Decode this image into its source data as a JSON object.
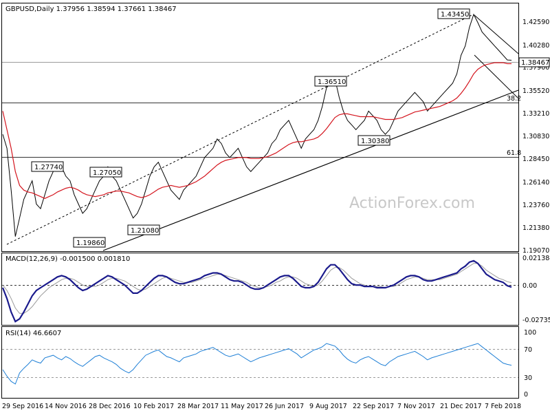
{
  "header": {
    "symbol_info": "GBPUSD,Daily  1.37956 1.38594 1.37661 1.38467"
  },
  "watermark": "ActionForex.com",
  "price_panel": {
    "y_ticks": [
      "1.42590",
      "1.40280",
      "1.37900",
      "1.35520",
      "1.33210",
      "1.30830",
      "1.28450",
      "1.26140",
      "1.23760",
      "1.21380",
      "1.19070"
    ],
    "current_price": "1.38467",
    "labels": [
      "1.43450",
      "1.36510",
      "1.30380",
      "1.27740",
      "1.27050",
      "1.21080",
      "1.19860"
    ],
    "fib_labels": [
      "38.2",
      "61.8"
    ]
  },
  "macd_panel": {
    "title": "MACD(12,26,9) -0.001500 0.001810",
    "y_ticks": [
      "0.021384",
      "0.00",
      "-0.027353"
    ]
  },
  "rsi_panel": {
    "title": "RSI(14) 46.6607",
    "y_ticks": [
      "100",
      "70",
      "30",
      "0"
    ]
  },
  "x_axis": {
    "labels": [
      "29 Sep 2016",
      "14 Nov 2016",
      "28 Dec 2016",
      "10 Feb 2017",
      "28 Mar 2017",
      "11 May 2017",
      "26 Jun 2017",
      "9 Aug 2017",
      "22 Sep 2017",
      "7 Nov 2017",
      "21 Dec 2017",
      "7 Feb 2018"
    ]
  },
  "chart_data": [
    {
      "type": "line",
      "title": "GBPUSD,Daily",
      "ylim": [
        1.18,
        1.445
      ],
      "series": [
        {
          "name": "price",
          "values": [
            1.305,
            1.29,
            1.245,
            1.195,
            1.215,
            1.235,
            1.245,
            1.255,
            1.23,
            1.225,
            1.24,
            1.255,
            1.265,
            1.275,
            1.27,
            1.26,
            1.255,
            1.24,
            1.23,
            1.22,
            1.225,
            1.235,
            1.245,
            1.255,
            1.26,
            1.27,
            1.26,
            1.255,
            1.245,
            1.235,
            1.225,
            1.215,
            1.22,
            1.23,
            1.245,
            1.26,
            1.27,
            1.275,
            1.265,
            1.255,
            1.245,
            1.24,
            1.235,
            1.245,
            1.25,
            1.255,
            1.26,
            1.27,
            1.28,
            1.285,
            1.29,
            1.3,
            1.295,
            1.285,
            1.28,
            1.285,
            1.29,
            1.28,
            1.27,
            1.265,
            1.27,
            1.275,
            1.28,
            1.285,
            1.295,
            1.3,
            1.31,
            1.315,
            1.32,
            1.31,
            1.3,
            1.29,
            1.3,
            1.305,
            1.31,
            1.32,
            1.335,
            1.355,
            1.36,
            1.365,
            1.345,
            1.33,
            1.32,
            1.315,
            1.31,
            1.315,
            1.32,
            1.33,
            1.325,
            1.32,
            1.31,
            1.305,
            1.31,
            1.32,
            1.33,
            1.335,
            1.34,
            1.345,
            1.35,
            1.345,
            1.34,
            1.33,
            1.335,
            1.34,
            1.345,
            1.35,
            1.355,
            1.36,
            1.37,
            1.39,
            1.4,
            1.42,
            1.434,
            1.425,
            1.415,
            1.41,
            1.405,
            1.4,
            1.395,
            1.39,
            1.385,
            1.3847
          ]
        },
        {
          "name": "MA",
          "values": [
            1.33,
            1.31,
            1.29,
            1.265,
            1.25,
            1.245,
            1.243,
            1.242,
            1.24,
            1.238,
            1.236,
            1.238,
            1.24,
            1.243,
            1.245,
            1.247,
            1.248,
            1.247,
            1.245,
            1.242,
            1.24,
            1.239,
            1.238,
            1.239,
            1.24,
            1.242,
            1.243,
            1.244,
            1.244,
            1.243,
            1.242,
            1.24,
            1.238,
            1.237,
            1.238,
            1.24,
            1.243,
            1.246,
            1.248,
            1.249,
            1.25,
            1.249,
            1.248,
            1.249,
            1.25,
            1.252,
            1.254,
            1.257,
            1.26,
            1.264,
            1.268,
            1.272,
            1.275,
            1.277,
            1.278,
            1.279,
            1.28,
            1.28,
            1.28,
            1.279,
            1.279,
            1.279,
            1.28,
            1.281,
            1.283,
            1.285,
            1.288,
            1.291,
            1.294,
            1.296,
            1.297,
            1.297,
            1.298,
            1.299,
            1.3,
            1.302,
            1.306,
            1.311,
            1.317,
            1.323,
            1.326,
            1.327,
            1.327,
            1.326,
            1.325,
            1.324,
            1.324,
            1.324,
            1.324,
            1.323,
            1.322,
            1.321,
            1.321,
            1.321,
            1.322,
            1.323,
            1.325,
            1.327,
            1.329,
            1.33,
            1.331,
            1.332,
            1.333,
            1.334,
            1.335,
            1.337,
            1.339,
            1.341,
            1.344,
            1.349,
            1.355,
            1.362,
            1.37,
            1.375,
            1.378,
            1.38,
            1.381,
            1.382,
            1.382,
            1.382,
            1.381,
            1.381
          ]
        }
      ]
    },
    {
      "type": "line",
      "title": "MACD(12,26,9)",
      "ylim": [
        -0.029,
        0.023
      ],
      "series": [
        {
          "name": "MACD",
          "values": [
            -0.002,
            -0.01,
            -0.02,
            -0.027,
            -0.025,
            -0.02,
            -0.014,
            -0.008,
            -0.004,
            -0.002,
            0.0,
            0.002,
            0.004,
            0.006,
            0.007,
            0.006,
            0.004,
            0.001,
            -0.002,
            -0.004,
            -0.003,
            -0.001,
            0.001,
            0.003,
            0.005,
            0.007,
            0.006,
            0.004,
            0.002,
            0.0,
            -0.003,
            -0.006,
            -0.006,
            -0.004,
            -0.001,
            0.002,
            0.005,
            0.007,
            0.007,
            0.006,
            0.004,
            0.002,
            0.001,
            0.001,
            0.002,
            0.003,
            0.004,
            0.005,
            0.007,
            0.008,
            0.009,
            0.009,
            0.008,
            0.006,
            0.004,
            0.003,
            0.003,
            0.002,
            0.0,
            -0.002,
            -0.003,
            -0.003,
            -0.002,
            0.0,
            0.002,
            0.004,
            0.006,
            0.007,
            0.007,
            0.005,
            0.002,
            -0.001,
            -0.002,
            -0.002,
            -0.001,
            0.002,
            0.007,
            0.012,
            0.015,
            0.015,
            0.012,
            0.008,
            0.004,
            0.001,
            0.0,
            0.0,
            -0.001,
            -0.001,
            -0.001,
            -0.002,
            -0.002,
            -0.002,
            -0.001,
            0.0,
            0.002,
            0.004,
            0.006,
            0.007,
            0.007,
            0.006,
            0.004,
            0.003,
            0.003,
            0.004,
            0.005,
            0.006,
            0.007,
            0.008,
            0.009,
            0.012,
            0.014,
            0.017,
            0.018,
            0.016,
            0.012,
            0.008,
            0.006,
            0.004,
            0.003,
            0.002,
            -0.0005,
            -0.0015
          ]
        },
        {
          "name": "signal",
          "values": [
            0.0,
            -0.004,
            -0.01,
            -0.017,
            -0.021,
            -0.021,
            -0.019,
            -0.016,
            -0.012,
            -0.008,
            -0.005,
            -0.002,
            0.0,
            0.002,
            0.004,
            0.005,
            0.005,
            0.004,
            0.002,
            0.0,
            -0.001,
            -0.001,
            -0.001,
            0.0,
            0.002,
            0.004,
            0.005,
            0.005,
            0.004,
            0.003,
            0.001,
            -0.001,
            -0.003,
            -0.004,
            -0.003,
            -0.001,
            0.001,
            0.003,
            0.005,
            0.006,
            0.005,
            0.004,
            0.003,
            0.002,
            0.002,
            0.002,
            0.003,
            0.004,
            0.005,
            0.006,
            0.007,
            0.008,
            0.008,
            0.007,
            0.006,
            0.005,
            0.004,
            0.003,
            0.002,
            0.0,
            -0.001,
            -0.002,
            -0.002,
            -0.001,
            0.0,
            0.002,
            0.003,
            0.005,
            0.006,
            0.006,
            0.005,
            0.003,
            0.001,
            0.0,
            -0.001,
            0.0,
            0.003,
            0.007,
            0.011,
            0.013,
            0.013,
            0.011,
            0.008,
            0.005,
            0.003,
            0.001,
            0.0,
            -0.001,
            -0.001,
            -0.001,
            -0.001,
            -0.002,
            -0.001,
            -0.001,
            0.0,
            0.002,
            0.004,
            0.005,
            0.006,
            0.006,
            0.005,
            0.004,
            0.004,
            0.004,
            0.004,
            0.005,
            0.006,
            0.007,
            0.008,
            0.01,
            0.012,
            0.014,
            0.016,
            0.016,
            0.014,
            0.011,
            0.009,
            0.007,
            0.005,
            0.004,
            0.0025,
            0.0018
          ]
        }
      ]
    },
    {
      "type": "line",
      "title": "RSI(14)",
      "ylim": [
        0,
        100
      ],
      "series": [
        {
          "name": "RSI",
          "values": [
            40,
            30,
            22,
            18,
            35,
            42,
            48,
            55,
            52,
            50,
            58,
            60,
            62,
            58,
            55,
            60,
            57,
            52,
            48,
            45,
            50,
            55,
            60,
            62,
            58,
            55,
            52,
            48,
            42,
            38,
            35,
            40,
            48,
            55,
            62,
            65,
            68,
            70,
            65,
            60,
            58,
            55,
            52,
            58,
            60,
            62,
            64,
            68,
            70,
            72,
            74,
            70,
            66,
            62,
            60,
            62,
            64,
            60,
            56,
            52,
            55,
            58,
            60,
            62,
            64,
            66,
            68,
            70,
            72,
            68,
            64,
            58,
            62,
            66,
            70,
            72,
            75,
            80,
            78,
            76,
            70,
            62,
            56,
            52,
            50,
            55,
            58,
            60,
            56,
            52,
            48,
            46,
            52,
            56,
            60,
            62,
            64,
            66,
            68,
            64,
            60,
            55,
            58,
            60,
            62,
            64,
            66,
            68,
            70,
            72,
            74,
            76,
            78,
            80,
            75,
            70,
            65,
            60,
            55,
            50,
            48,
            46.7
          ]
        }
      ]
    }
  ]
}
